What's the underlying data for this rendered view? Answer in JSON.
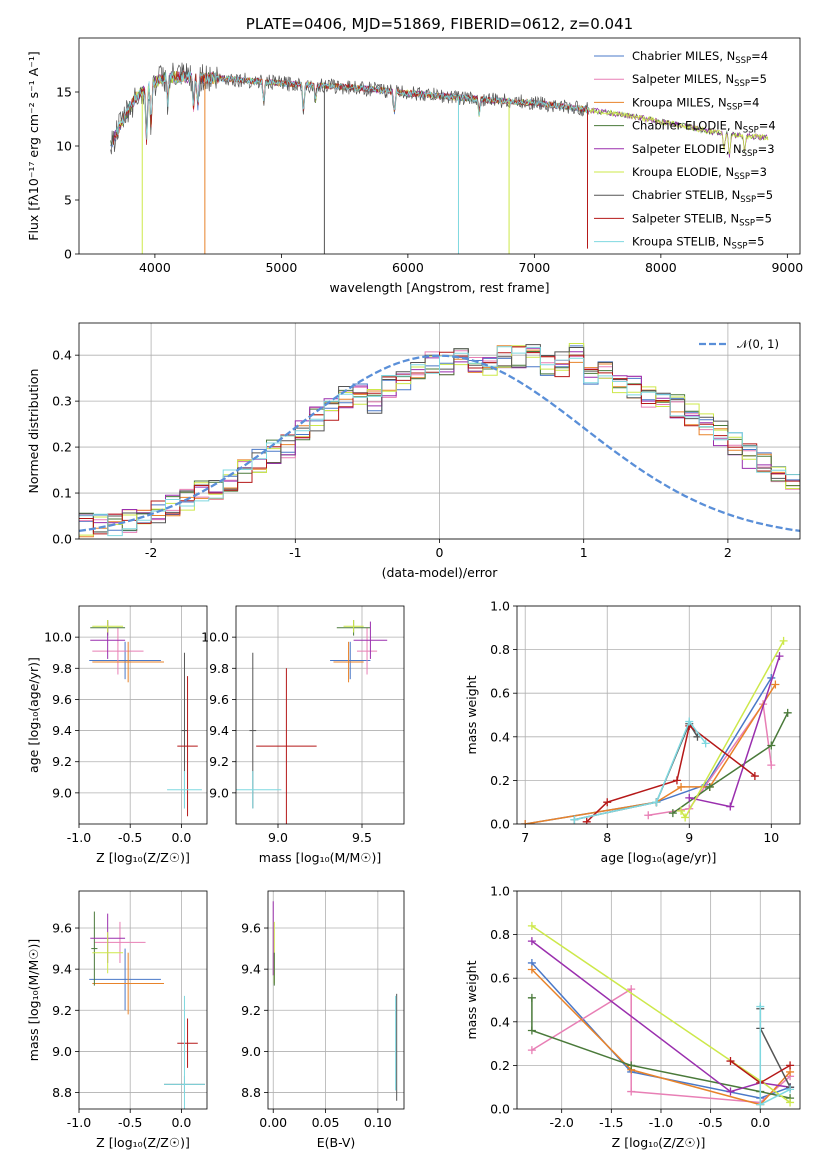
{
  "colors": {
    "Chabrier MILES": "#4a78c8",
    "Salpeter MILES": "#e87fb5",
    "Kroupa MILES": "#e8832a",
    "Chabrier ELODIE": "#4a7a3a",
    "Salpeter ELODIE": "#9a2fae",
    "Kroupa ELODIE": "#cde84a",
    "Chabrier STELIB": "#555555",
    "Salpeter STELIB": "#b51818",
    "Kroupa STELIB": "#7fd8e0",
    "normal_curve": "#5a8fd8"
  },
  "chart_data": [
    {
      "id": "spectrum",
      "type": "line",
      "title": "PLATE=0406, MJD=51869, FIBERID=0612, z=0.041",
      "xlabel": "wavelength [Angstrom, rest frame]",
      "ylabel": "Flux [fλ10⁻¹⁷ erg cm⁻² s⁻¹ A⁻¹]",
      "xlim": [
        3400,
        9100
      ],
      "ylim": [
        0,
        20
      ],
      "xticks": [
        "4000",
        "5000",
        "6000",
        "7000",
        "8000",
        "9000"
      ],
      "yticks": [
        "0",
        "5",
        "10",
        "15"
      ],
      "grid": false,
      "legend_position": "top-right",
      "legend": [
        {
          "label": "Chabrier MILES, N",
          "sub": "SSP",
          "suffix": "=4"
        },
        {
          "label": "Salpeter MILES, N",
          "sub": "SSP",
          "suffix": "=5"
        },
        {
          "label": "Kroupa MILES, N",
          "sub": "SSP",
          "suffix": "=4"
        },
        {
          "label": "Chabrier ELODIE, N",
          "sub": "SSP",
          "suffix": "=4"
        },
        {
          "label": "Salpeter ELODIE, N",
          "sub": "SSP",
          "suffix": "=3"
        },
        {
          "label": "Kroupa ELODIE, N",
          "sub": "SSP",
          "suffix": "=3"
        },
        {
          "label": "Chabrier STELIB, N",
          "sub": "SSP",
          "suffix": "=5"
        },
        {
          "label": "Salpeter STELIB, N",
          "sub": "SSP",
          "suffix": "=5"
        },
        {
          "label": "Kroupa STELIB, N",
          "sub": "SSP",
          "suffix": "=5"
        }
      ],
      "continuum": {
        "x": [
          3650,
          3750,
          3850,
          3950,
          4050,
          4200,
          4400,
          4600,
          4800,
          5000,
          5300,
          5600,
          6000,
          6300,
          6600,
          7000,
          7400,
          7800,
          8200,
          8500,
          8800
        ],
        "y": [
          10.0,
          12.5,
          14.5,
          15.5,
          16.3,
          16.4,
          16.3,
          16.2,
          16.0,
          15.8,
          15.6,
          15.4,
          14.9,
          14.6,
          14.3,
          14.0,
          13.4,
          12.7,
          11.8,
          11.1,
          10.8
        ]
      },
      "dips": [
        {
          "x": 3900,
          "y": 0
        },
        {
          "x": 4395,
          "y": 0
        },
        {
          "x": 5340,
          "y": 0
        },
        {
          "x": 6400,
          "y": 0
        },
        {
          "x": 6800,
          "y": 0
        },
        {
          "x": 7420,
          "y": 0.5
        }
      ]
    },
    {
      "id": "residual_histogram",
      "type": "line",
      "xlabel": "(data-model)/error",
      "ylabel": "Normed distribution",
      "xlim": [
        -2.5,
        2.5
      ],
      "ylim": [
        0,
        0.47
      ],
      "xticks": [
        "-2",
        "-1",
        "0",
        "1",
        "2"
      ],
      "yticks": [
        "0.0",
        "0.1",
        "0.2",
        "0.3",
        "0.4"
      ],
      "grid": true,
      "legend_position": "top-right",
      "legend": [
        "𝒩(0, 1)"
      ],
      "bin_width": 0.1,
      "base": [
        0.03,
        0.03,
        0.03,
        0.04,
        0.05,
        0.06,
        0.07,
        0.09,
        0.1,
        0.11,
        0.13,
        0.15,
        0.17,
        0.19,
        0.2,
        0.23,
        0.26,
        0.28,
        0.31,
        0.32,
        0.3,
        0.33,
        0.35,
        0.36,
        0.38,
        0.38,
        0.39,
        0.38,
        0.38,
        0.4,
        0.4,
        0.4,
        0.38,
        0.38,
        0.4,
        0.36,
        0.37,
        0.34,
        0.33,
        0.31,
        0.3,
        0.29,
        0.27,
        0.25,
        0.23,
        0.21,
        0.18,
        0.17,
        0.15,
        0.13,
        0.12,
        0.1,
        0.09,
        0.08,
        0.07,
        0.06,
        0.05,
        0.04,
        0.04,
        0.03
      ]
    },
    {
      "id": "age_vs_Z",
      "type": "scatter",
      "xlabel": "Z [log₁₀(Z/Z☉)]",
      "ylabel": "age  [log₁₀(age/yr)]",
      "xlim": [
        -1.0,
        0.25
      ],
      "ylim": [
        8.8,
        10.2
      ],
      "xticks": [
        "-1.0",
        "-0.5",
        "0.0"
      ],
      "yticks": [
        "9.0",
        "9.2",
        "9.4",
        "9.6",
        "9.8",
        "10.0"
      ],
      "grid": true,
      "points": [
        {
          "series": "Chabrier MILES",
          "x": -0.55,
          "y": 9.85,
          "xerr": 0.35,
          "yerr": 0.12
        },
        {
          "series": "Salpeter MILES",
          "x": -0.62,
          "y": 9.91,
          "xerr": 0.25,
          "yerr": 0.15
        },
        {
          "series": "Kroupa MILES",
          "x": -0.52,
          "y": 9.84,
          "xerr": 0.35,
          "yerr": 0.13
        },
        {
          "series": "Chabrier ELODIE",
          "x": -0.72,
          "y": 10.06,
          "xerr": 0.17,
          "yerr": 0.05
        },
        {
          "series": "Salpeter ELODIE",
          "x": -0.72,
          "y": 9.98,
          "xerr": 0.17,
          "yerr": 0.12
        },
        {
          "series": "Kroupa ELODIE",
          "x": -0.72,
          "y": 10.07,
          "xerr": 0.15,
          "yerr": 0.04
        },
        {
          "series": "Chabrier STELIB",
          "x": 0.03,
          "y": 9.4,
          "xerr": 0.03,
          "yerr": 0.5
        },
        {
          "series": "Salpeter STELIB",
          "x": 0.06,
          "y": 9.3,
          "xerr": 0.1,
          "yerr": 0.45
        },
        {
          "series": "Kroupa STELIB",
          "x": 0.03,
          "y": 9.02,
          "xerr": 0.17,
          "yerr": 0.12
        }
      ]
    },
    {
      "id": "age_vs_mass",
      "type": "scatter",
      "xlabel": "mass [log₁₀(M/M☉)]",
      "xlim": [
        8.75,
        9.75
      ],
      "ylim": [
        8.8,
        10.2
      ],
      "xticks": [
        "9.0",
        "9.5"
      ],
      "yticks": [
        "9.0",
        "9.2",
        "9.4",
        "9.6",
        "9.8",
        "10.0"
      ],
      "grid": true,
      "points": [
        {
          "series": "Chabrier MILES",
          "x": 9.43,
          "y": 9.85,
          "xerr": 0.12,
          "yerr": 0.12
        },
        {
          "series": "Salpeter MILES",
          "x": 9.53,
          "y": 9.91,
          "xerr": 0.06,
          "yerr": 0.15
        },
        {
          "series": "Kroupa MILES",
          "x": 9.42,
          "y": 9.84,
          "xerr": 0.09,
          "yerr": 0.13
        },
        {
          "series": "Chabrier ELODIE",
          "x": 9.45,
          "y": 10.06,
          "xerr": 0.1,
          "yerr": 0.05
        },
        {
          "series": "Salpeter ELODIE",
          "x": 9.55,
          "y": 9.98,
          "xerr": 0.1,
          "yerr": 0.12
        },
        {
          "series": "Kroupa ELODIE",
          "x": 9.45,
          "y": 10.07,
          "xerr": 0.06,
          "yerr": 0.04
        },
        {
          "series": "Chabrier STELIB",
          "x": 8.85,
          "y": 9.4,
          "xerr": 0.02,
          "yerr": 0.5
        },
        {
          "series": "Salpeter STELIB",
          "x": 9.05,
          "y": 9.3,
          "xerr": 0.18,
          "yerr": 0.5
        },
        {
          "series": "Kroupa STELIB",
          "x": 8.85,
          "y": 9.02,
          "xerr": 0.17,
          "yerr": 0.12
        }
      ]
    },
    {
      "id": "weight_vs_age",
      "type": "line",
      "xlabel": "age  [log₁₀(age/yr)]",
      "ylabel": "mass weight",
      "xlim": [
        6.9,
        10.35
      ],
      "ylim": [
        0,
        1.0
      ],
      "xticks": [
        "7",
        "8",
        "9",
        "10"
      ],
      "yticks": [
        "0.0",
        "0.2",
        "0.4",
        "0.6",
        "0.8",
        "1.0"
      ],
      "grid": true,
      "series": [
        {
          "name": "Chabrier MILES",
          "x": [
            7.0,
            8.6,
            9.2,
            10.0
          ],
          "y": [
            0.0,
            0.1,
            0.18,
            0.67
          ]
        },
        {
          "name": "Salpeter MILES",
          "x": [
            8.5,
            9.0,
            9.9,
            10.0
          ],
          "y": [
            0.04,
            0.07,
            0.55,
            0.27
          ]
        },
        {
          "name": "Kroupa MILES",
          "x": [
            7.0,
            8.6,
            8.9,
            9.25,
            10.05
          ],
          "y": [
            0.0,
            0.1,
            0.17,
            0.17,
            0.64
          ]
        },
        {
          "name": "Chabrier ELODIE",
          "x": [
            8.8,
            9.25,
            10.0,
            10.2
          ],
          "y": [
            0.05,
            0.17,
            0.36,
            0.51
          ]
        },
        {
          "name": "Salpeter ELODIE",
          "x": [
            9.0,
            9.5,
            10.1
          ],
          "y": [
            0.12,
            0.08,
            0.77
          ]
        },
        {
          "name": "Kroupa ELODIE",
          "x": [
            8.9,
            8.95,
            10.15
          ],
          "y": [
            0.06,
            0.03,
            0.84
          ]
        },
        {
          "name": "Chabrier STELIB",
          "x": [
            7.6,
            8.6,
            9.0,
            9.1
          ],
          "y": [
            0.02,
            0.1,
            0.46,
            0.4
          ]
        },
        {
          "name": "Salpeter STELIB",
          "x": [
            7.75,
            8.0,
            8.85,
            9.0,
            9.8
          ],
          "y": [
            0.01,
            0.1,
            0.2,
            0.45,
            0.22
          ]
        },
        {
          "name": "Kroupa STELIB",
          "x": [
            7.6,
            8.6,
            9.0,
            9.2
          ],
          "y": [
            0.02,
            0.1,
            0.47,
            0.37
          ]
        }
      ]
    },
    {
      "id": "mass_vs_Z",
      "type": "scatter",
      "xlabel": "Z [log₁₀(Z/Z☉)]",
      "ylabel": "mass [log₁₀(M/M☉)]",
      "xlim": [
        -1.0,
        0.25
      ],
      "ylim": [
        8.72,
        9.78
      ],
      "xticks": [
        "-1.0",
        "-0.5",
        "0.0"
      ],
      "yticks": [
        "8.8",
        "9.0",
        "9.2",
        "9.4",
        "9.6"
      ],
      "grid": true,
      "points": [
        {
          "series": "Chabrier MILES",
          "x": -0.55,
          "y": 9.35,
          "xerr": 0.35,
          "yerr": 0.15
        },
        {
          "series": "Salpeter MILES",
          "x": -0.6,
          "y": 9.53,
          "xerr": 0.25,
          "yerr": 0.1
        },
        {
          "series": "Kroupa MILES",
          "x": -0.52,
          "y": 9.33,
          "xerr": 0.35,
          "yerr": 0.15
        },
        {
          "series": "Chabrier ELODIE",
          "x": -0.85,
          "y": 9.5,
          "xerr": 0.03,
          "yerr": 0.18
        },
        {
          "series": "Salpeter ELODIE",
          "x": -0.72,
          "y": 9.55,
          "xerr": 0.17,
          "yerr": 0.12
        },
        {
          "series": "Kroupa ELODIE",
          "x": -0.72,
          "y": 9.48,
          "xerr": 0.15,
          "yerr": 0.1
        },
        {
          "series": "Chabrier STELIB",
          "x": 0.03,
          "y": 8.84,
          "xerr": 0.2,
          "yerr": 0.04
        },
        {
          "series": "Salpeter STELIB",
          "x": 0.06,
          "y": 9.04,
          "xerr": 0.1,
          "yerr": 0.12
        },
        {
          "series": "Kroupa STELIB",
          "x": 0.03,
          "y": 8.84,
          "xerr": 0.2,
          "yerr": 0.43
        }
      ]
    },
    {
      "id": "mass_vs_EBV",
      "type": "scatter",
      "xlabel": "E(B-V)",
      "xlim": [
        -0.005,
        0.125
      ],
      "ylim": [
        8.72,
        9.78
      ],
      "xticks": [
        "0.00",
        "0.05",
        "0.10"
      ],
      "yticks": [
        "8.8",
        "9.0",
        "9.2",
        "9.4",
        "9.6"
      ],
      "grid": true,
      "points": [
        {
          "series": "Salpeter ELODIE",
          "x": 0.0,
          "y": 9.55,
          "xerr": 0.0,
          "yerr": 0.18
        },
        {
          "series": "Kroupa ELODIE",
          "x": 0.001,
          "y": 9.48,
          "xerr": 0.0,
          "yerr": 0.15
        },
        {
          "series": "Chabrier ELODIE",
          "x": 0.001,
          "y": 9.4,
          "xerr": 0.0,
          "yerr": 0.08
        },
        {
          "series": "Chabrier STELIB",
          "x": 0.118,
          "y": 9.02,
          "xerr": 0.0,
          "yerr": 0.26
        },
        {
          "series": "Kroupa STELIB",
          "x": 0.117,
          "y": 9.04,
          "xerr": 0.0,
          "yerr": 0.23
        }
      ]
    },
    {
      "id": "weight_vs_Z",
      "type": "line",
      "xlabel": "Z [log₁₀(Z/Z☉)]",
      "ylabel": "mass weight",
      "xlim": [
        -2.45,
        0.4
      ],
      "ylim": [
        0,
        1.0
      ],
      "xticks": [
        "-2.0",
        "-1.5",
        "-1.0",
        "-0.5",
        "0.0"
      ],
      "yticks": [
        "0.0",
        "0.2",
        "0.4",
        "0.6",
        "0.8",
        "1.0"
      ],
      "grid": true,
      "series": [
        {
          "name": "Chabrier MILES",
          "x": [
            -2.3,
            -1.3,
            0.0,
            0.3
          ],
          "y": [
            0.67,
            0.17,
            0.05,
            0.1
          ]
        },
        {
          "name": "Salpeter MILES",
          "x": [
            -2.3,
            -1.3,
            -1.3,
            0.0,
            0.3
          ],
          "y": [
            0.27,
            0.55,
            0.08,
            0.03,
            0.15
          ]
        },
        {
          "name": "Kroupa MILES",
          "x": [
            -2.3,
            -1.3,
            0.0,
            0.3
          ],
          "y": [
            0.64,
            0.18,
            0.02,
            0.17
          ]
        },
        {
          "name": "Chabrier ELODIE",
          "x": [
            -2.3,
            -2.3,
            -1.3,
            0.0,
            0.3
          ],
          "y": [
            0.51,
            0.36,
            0.2,
            0.08,
            0.05
          ]
        },
        {
          "name": "Salpeter ELODIE",
          "x": [
            -2.3,
            -0.3,
            0.0,
            0.3
          ],
          "y": [
            0.77,
            0.08,
            0.12,
            0.1
          ]
        },
        {
          "name": "Kroupa ELODIE",
          "x": [
            -2.3,
            0.0,
            0.3
          ],
          "y": [
            0.84,
            0.13,
            0.03
          ]
        },
        {
          "name": "Chabrier STELIB",
          "x": [
            0.0,
            0.0,
            0.3
          ],
          "y": [
            0.46,
            0.37,
            0.1
          ]
        },
        {
          "name": "Salpeter STELIB",
          "x": [
            -0.3,
            0.0,
            0.3
          ],
          "y": [
            0.22,
            0.12,
            0.2
          ]
        },
        {
          "name": "Kroupa STELIB",
          "x": [
            0.0,
            0.0,
            0.3
          ],
          "y": [
            0.47,
            0.02,
            0.09
          ]
        }
      ]
    }
  ]
}
